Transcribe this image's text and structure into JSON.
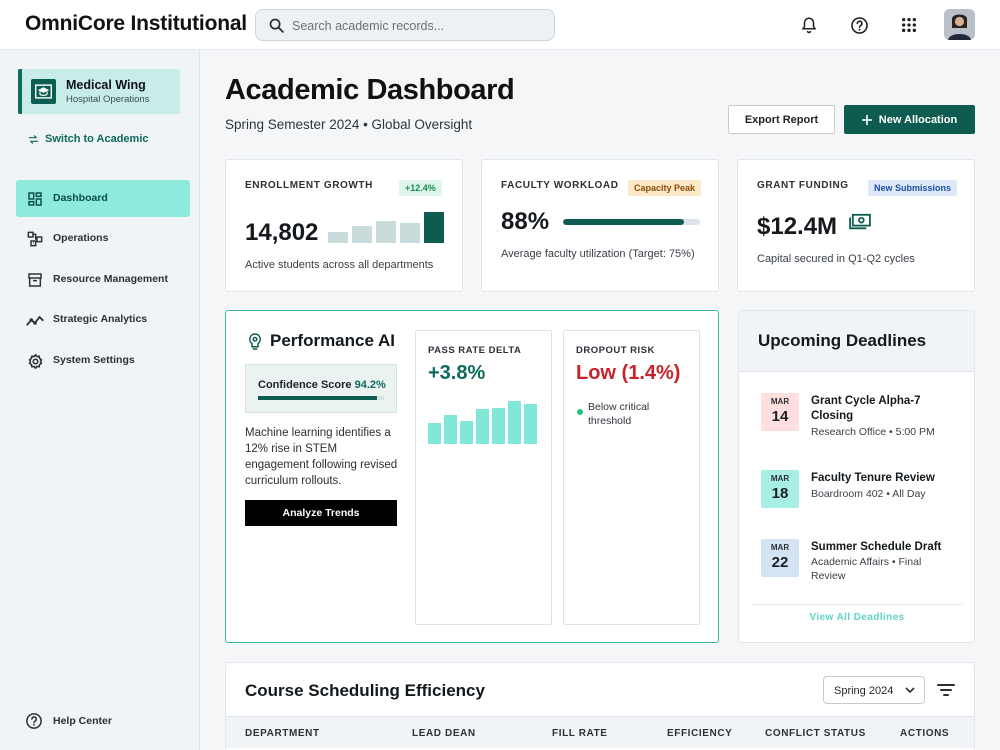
{
  "app": {
    "brand": "OmniCore Institutional",
    "search_placeholder": "Search academic records..."
  },
  "header_icons": [
    "bell-icon",
    "help-circle-icon",
    "apps-grid-icon"
  ],
  "sidebar": {
    "context": {
      "title": "Medical Wing",
      "subtitle": "Hospital Operations"
    },
    "switch_label": "Switch to Academic",
    "items": [
      {
        "label": "Dashboard",
        "icon": "dashboard-icon",
        "active": true
      },
      {
        "label": "Operations",
        "icon": "operations-icon",
        "active": false
      },
      {
        "label": "Resource Management",
        "icon": "inventory-icon",
        "active": false
      },
      {
        "label": "Strategic Analytics",
        "icon": "analytics-icon",
        "active": false
      },
      {
        "label": "System Settings",
        "icon": "gear-icon",
        "active": false
      }
    ],
    "help_label": "Help Center"
  },
  "page": {
    "title": "Academic Dashboard",
    "subtitle": "Spring Semester 2024 • Global Oversight",
    "export_label": "Export Report",
    "new_label": "New Allocation"
  },
  "kpis": {
    "enrollment": {
      "label": "ENROLLMENT GROWTH",
      "badge": "+12.4%",
      "value": "14,802",
      "note": "Active students across all departments",
      "bar_levels": [
        0.35,
        0.55,
        0.7,
        0.65,
        1.0
      ]
    },
    "faculty": {
      "label": "FACULTY WORKLOAD",
      "badge": "Capacity Peak",
      "value": "88%",
      "progress": 0.88,
      "note": "Average faculty utilization (Target: 75%)"
    },
    "grants": {
      "label": "GRANT FUNDING",
      "badge": "New Submissions",
      "value": "$12.4M",
      "note": "Capital secured in Q1-Q2 cycles"
    }
  },
  "performance_ai": {
    "title": "Performance AI",
    "confidence_label": "Confidence Score",
    "confidence_value": "94.2%",
    "confidence_level": 0.942,
    "description": "Machine learning identifies a 12% rise in STEM engagement following revised curriculum rollouts.",
    "button_label": "Analyze Trends",
    "pass_rate": {
      "label": "PASS RATE DELTA",
      "value": "+3.8%",
      "bar_levels": [
        0.48,
        0.65,
        0.52,
        0.8,
        0.82,
        0.98,
        0.92
      ]
    },
    "dropout": {
      "label": "DROPOUT RISK",
      "value": "Low (1.4%)",
      "note": "Below critical threshold"
    }
  },
  "deadlines": {
    "title": "Upcoming Deadlines",
    "items": [
      {
        "month": "MAR",
        "day": "14",
        "name": "Grant Cycle Alpha-7 Closing",
        "meta": "Research Office • 5:00 PM",
        "color": "#fde0de"
      },
      {
        "month": "MAR",
        "day": "18",
        "name": "Faculty Tenure Review",
        "meta": "Boardroom 402 • All Day",
        "color": "#a7efe4"
      },
      {
        "month": "MAR",
        "day": "22",
        "name": "Summer Schedule Draft",
        "meta": "Academic Affairs • Final Review",
        "color": "#d5e4f5"
      }
    ],
    "link_label": "View All Deadlines"
  },
  "scheduling": {
    "title": "Course Scheduling Efficiency",
    "term": "Spring 2024",
    "columns": [
      "DEPARTMENT",
      "LEAD DEAN",
      "FILL RATE",
      "EFFICIENCY",
      "CONFLICT STATUS",
      "ACTIONS"
    ]
  },
  "colors": {
    "primary": "#0e5c50",
    "accent": "#8eeadd",
    "danger": "#c8232b",
    "teal_light": "#7fe8d8"
  }
}
